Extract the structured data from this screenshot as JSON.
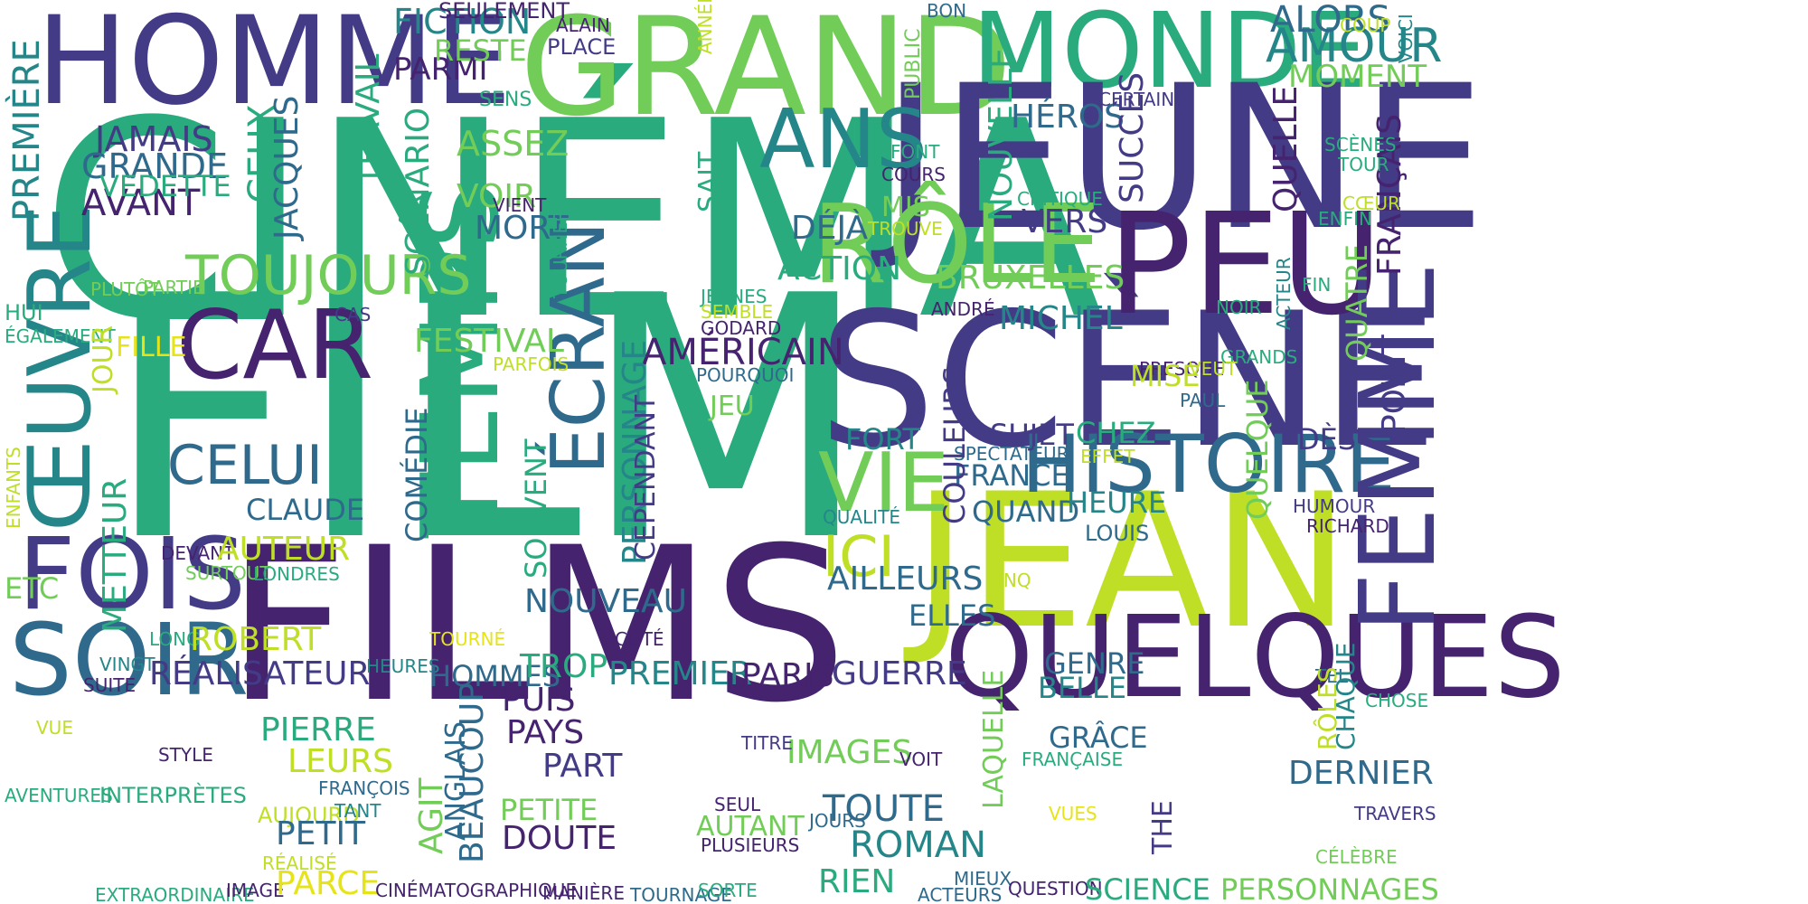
{
  "background": "#ffffff",
  "palette": {
    "dark_purple": "#45236f",
    "indigo": "#433b86",
    "blue": "#2f6a8c",
    "teal": "#25868a",
    "green": "#2aab7e",
    "light_green": "#72cc58",
    "yellow_green": "#bedf26",
    "yellow": "#e6e419"
  },
  "words": [
    {
      "text": "CINÉMA",
      "color": "#2aab7e"
    },
    {
      "text": "FILM",
      "color": "#2aab7e"
    },
    {
      "text": "FILMS",
      "color": "#45236f"
    },
    {
      "text": "GRAND",
      "color": "#72cc58"
    },
    {
      "text": "HOMME",
      "color": "#433b86"
    },
    {
      "text": "MONDE",
      "color": "#2aab7e"
    },
    {
      "text": "JEUNE",
      "color": "#433b86"
    },
    {
      "text": "SCÈNE",
      "color": "#433b86"
    },
    {
      "text": "JEAN",
      "color": "#bedf26"
    },
    {
      "text": "PEU",
      "color": "#45236f"
    },
    {
      "text": "RÔLE",
      "color": "#72cc58"
    },
    {
      "text": "QUELQUES",
      "color": "#45236f"
    },
    {
      "text": "HISTOIRE",
      "color": "#2f6a8c"
    },
    {
      "text": "FEMME",
      "color": "#433b86"
    },
    {
      "text": "TEMPS",
      "color": "#2aab7e"
    },
    {
      "text": "CAR",
      "color": "#45236f"
    },
    {
      "text": "ŒUVRE",
      "color": "#25868a"
    },
    {
      "text": "FOIS",
      "color": "#433b86"
    },
    {
      "text": "SOIR",
      "color": "#2f6a8c"
    },
    {
      "text": "ÉCRAN",
      "color": "#2f6a8c"
    },
    {
      "text": "ANS",
      "color": "#25868a"
    },
    {
      "text": "VIE",
      "color": "#72cc58"
    },
    {
      "text": "AMOUR",
      "color": "#25868a"
    },
    {
      "text": "TOUJOURS",
      "color": "#72cc58"
    },
    {
      "text": "CELUI",
      "color": "#2f6a8c"
    },
    {
      "text": "FICTION",
      "color": "#25868a"
    },
    {
      "text": "ICI",
      "color": "#bedf26"
    },
    {
      "text": "PREMIÈRE",
      "color": "#25868a"
    },
    {
      "text": "JAMAIS",
      "color": "#433b86"
    },
    {
      "text": "GRANDE",
      "color": "#2f6a8c"
    },
    {
      "text": "AVANT",
      "color": "#45236f"
    },
    {
      "text": "VEDETTE",
      "color": "#2aab7e"
    },
    {
      "text": "CEUX",
      "color": "#2aab7e"
    },
    {
      "text": "JACQUES",
      "color": "#2f6a8c"
    },
    {
      "text": "TRAVAIL",
      "color": "#2aab7e"
    },
    {
      "text": "SCÉNARIO",
      "color": "#2aab7e"
    },
    {
      "text": "ASSEZ",
      "color": "#72cc58"
    },
    {
      "text": "VOIR",
      "color": "#72cc58"
    },
    {
      "text": "MORT",
      "color": "#2f6a8c"
    },
    {
      "text": "PARMI",
      "color": "#45236f"
    },
    {
      "text": "RESTE",
      "color": "#72cc58"
    },
    {
      "text": "SEULEMENT",
      "color": "#45236f"
    },
    {
      "text": "ALAIN",
      "color": "#45236f"
    },
    {
      "text": "PLACE",
      "color": "#433b86"
    },
    {
      "text": "ANNÉES",
      "color": "#bedf26"
    },
    {
      "text": "BON",
      "color": "#2f6a8c"
    },
    {
      "text": "PUBLIC",
      "color": "#72cc58"
    },
    {
      "text": "SENS",
      "color": "#2aab7e"
    },
    {
      "text": "ALORS",
      "color": "#2f6a8c"
    },
    {
      "text": "COUP",
      "color": "#bedf26"
    },
    {
      "text": "VOICI",
      "color": "#25868a"
    },
    {
      "text": "MOMENT",
      "color": "#72cc58"
    },
    {
      "text": "CERTAINS",
      "color": "#433b86"
    },
    {
      "text": "HÉROS",
      "color": "#2f6a8c"
    },
    {
      "text": "NOUVELLE",
      "color": "#2aab7e"
    },
    {
      "text": "SUCCÈS",
      "color": "#433b86"
    },
    {
      "text": "QUELLE",
      "color": "#45236f"
    },
    {
      "text": "FRANÇAIS",
      "color": "#45236f"
    },
    {
      "text": "SCÈNES",
      "color": "#2aab7e"
    },
    {
      "text": "TOUR",
      "color": "#2aab7e"
    },
    {
      "text": "CŒUR",
      "color": "#bedf26"
    },
    {
      "text": "ENFIN",
      "color": "#2aab7e"
    },
    {
      "text": "FONT",
      "color": "#2aab7e"
    },
    {
      "text": "COURS",
      "color": "#45236f"
    },
    {
      "text": "CRITIQUE",
      "color": "#2aab7e"
    },
    {
      "text": "VERS",
      "color": "#433b86"
    },
    {
      "text": "MIS",
      "color": "#72cc58"
    },
    {
      "text": "TROUVE",
      "color": "#bedf26"
    },
    {
      "text": "DÉJÀ",
      "color": "#2f6a8c"
    },
    {
      "text": "ACTION",
      "color": "#2aab7e"
    },
    {
      "text": "VIENT",
      "color": "#45236f"
    },
    {
      "text": "SAIT",
      "color": "#2aab7e"
    },
    {
      "text": "BRUXELLES",
      "color": "#72cc58"
    },
    {
      "text": "MICHEL",
      "color": "#25868a"
    },
    {
      "text": "ANDRÉ",
      "color": "#45236f"
    },
    {
      "text": "NOIR",
      "color": "#2aab7e"
    },
    {
      "text": "ACTEUR",
      "color": "#25868a"
    },
    {
      "text": "FIN",
      "color": "#2aab7e"
    },
    {
      "text": "QUATRE",
      "color": "#72cc58"
    },
    {
      "text": "POINT",
      "color": "#433b86"
    },
    {
      "text": "GRANDS",
      "color": "#2aab7e"
    },
    {
      "text": "PRESQUE",
      "color": "#45236f"
    },
    {
      "text": "MISE",
      "color": "#bedf26"
    },
    {
      "text": "VEUT",
      "color": "#bedf26"
    },
    {
      "text": "PAUL",
      "color": "#2f6a8c"
    },
    {
      "text": "CHEZ",
      "color": "#2aab7e"
    },
    {
      "text": "EFFET",
      "color": "#bedf26"
    },
    {
      "text": "SUJET",
      "color": "#433b86"
    },
    {
      "text": "SPECTATEUR",
      "color": "#2f6a8c"
    },
    {
      "text": "FRANCE",
      "color": "#2f6a8c"
    },
    {
      "text": "QUAND",
      "color": "#2f6a8c"
    },
    {
      "text": "FORT",
      "color": "#25868a"
    },
    {
      "text": "COULEURS",
      "color": "#433b86"
    },
    {
      "text": "QUELQUE",
      "color": "#72cc58"
    },
    {
      "text": "DÈS",
      "color": "#433b86"
    },
    {
      "text": "HEURE",
      "color": "#25868a"
    },
    {
      "text": "LOUIS",
      "color": "#2f6a8c"
    },
    {
      "text": "HUMOUR",
      "color": "#433b86"
    },
    {
      "text": "RICHARD",
      "color": "#45236f"
    },
    {
      "text": "QUALITÉ",
      "color": "#25868a"
    },
    {
      "text": "JEUNES",
      "color": "#2aab7e"
    },
    {
      "text": "SEMBLE",
      "color": "#bedf26"
    },
    {
      "text": "GODARD",
      "color": "#45236f"
    },
    {
      "text": "POURQUOI",
      "color": "#2f6a8c"
    },
    {
      "text": "AMÉRICAIN",
      "color": "#45236f"
    },
    {
      "text": "JEU",
      "color": "#72cc58"
    },
    {
      "text": "PERSONNAGE",
      "color": "#25868a"
    },
    {
      "text": "CEPENDANT",
      "color": "#433b86"
    },
    {
      "text": "TOURNER",
      "color": "#2aab7e"
    },
    {
      "text": "CAS",
      "color": "#433b86"
    },
    {
      "text": "FESTIVAL",
      "color": "#72cc58"
    },
    {
      "text": "PARFOIS",
      "color": "#bedf26"
    },
    {
      "text": "HUI",
      "color": "#2aab7e"
    },
    {
      "text": "ÉGALEMENT",
      "color": "#2aab7e"
    },
    {
      "text": "FILLE",
      "color": "#e6e419"
    },
    {
      "text": "JOUR",
      "color": "#bedf26"
    },
    {
      "text": "PLUTÔT",
      "color": "#72cc58"
    },
    {
      "text": "PARTIE",
      "color": "#72cc58"
    },
    {
      "text": "METTEUR",
      "color": "#2aab7e"
    },
    {
      "text": "ENFANTS",
      "color": "#bedf26"
    },
    {
      "text": "CLAUDE",
      "color": "#2f6a8c"
    },
    {
      "text": "COMÉDIE",
      "color": "#2f6a8c"
    },
    {
      "text": "SOUVENT",
      "color": "#2aab7e"
    },
    {
      "text": "DEVANT",
      "color": "#45236f"
    },
    {
      "text": "AUTEUR",
      "color": "#bedf26"
    },
    {
      "text": "SURTOUT",
      "color": "#72cc58"
    },
    {
      "text": "LONDRES",
      "color": "#2aab7e"
    },
    {
      "text": "ETC",
      "color": "#72cc58"
    },
    {
      "text": "NOUVEAU",
      "color": "#2f6a8c"
    },
    {
      "text": "AILLEURS",
      "color": "#2f6a8c"
    },
    {
      "text": "CINQ",
      "color": "#bedf26"
    },
    {
      "text": "ELLES",
      "color": "#2f6a8c"
    },
    {
      "text": "LONG",
      "color": "#2aab7e"
    },
    {
      "text": "ROBERT",
      "color": "#bedf26"
    },
    {
      "text": "TOURNÉ",
      "color": "#e6e419"
    },
    {
      "text": "CÔTÉ",
      "color": "#45236f"
    },
    {
      "text": "VINGT",
      "color": "#25868a"
    },
    {
      "text": "RÉALISATEUR",
      "color": "#433b86"
    },
    {
      "text": "HEURES",
      "color": "#25868a"
    },
    {
      "text": "HOMMES",
      "color": "#2f6a8c"
    },
    {
      "text": "TROP",
      "color": "#2aab7e"
    },
    {
      "text": "PREMIER",
      "color": "#25868a"
    },
    {
      "text": "PARIS",
      "color": "#45236f"
    },
    {
      "text": "GUERRE",
      "color": "#433b86"
    },
    {
      "text": "GENRE",
      "color": "#2f6a8c"
    },
    {
      "text": "BELLE",
      "color": "#25868a"
    },
    {
      "text": "TEL",
      "color": "#2f6a8c"
    },
    {
      "text": "RÔLES",
      "color": "#bedf26"
    },
    {
      "text": "CHAQUE",
      "color": "#25868a"
    },
    {
      "text": "CHOSE",
      "color": "#2aab7e"
    },
    {
      "text": "SUITE",
      "color": "#45236f"
    },
    {
      "text": "VUE",
      "color": "#bedf26"
    },
    {
      "text": "PIERRE",
      "color": "#2aab7e"
    },
    {
      "text": "LEURS",
      "color": "#bedf26"
    },
    {
      "text": "STYLE",
      "color": "#45236f"
    },
    {
      "text": "PUIS",
      "color": "#45236f"
    },
    {
      "text": "PAYS",
      "color": "#45236f"
    },
    {
      "text": "PART",
      "color": "#433b86"
    },
    {
      "text": "IMAGES",
      "color": "#72cc58"
    },
    {
      "text": "TITRE",
      "color": "#433b86"
    },
    {
      "text": "VOIT",
      "color": "#45236f"
    },
    {
      "text": "GRÂCE",
      "color": "#2f6a8c"
    },
    {
      "text": "FRANÇAISE",
      "color": "#2aab7e"
    },
    {
      "text": "LAQUELLE",
      "color": "#72cc58"
    },
    {
      "text": "DERNIER",
      "color": "#2f6a8c"
    },
    {
      "text": "THE",
      "color": "#433b86"
    },
    {
      "text": "TRAVERS",
      "color": "#433b86"
    },
    {
      "text": "AVENTURES",
      "color": "#2aab7e"
    },
    {
      "text": "INTERPRÈTES",
      "color": "#2aab7e"
    },
    {
      "text": "FRANÇOIS",
      "color": "#2f6a8c"
    },
    {
      "text": "AUJOURD",
      "color": "#bedf26"
    },
    {
      "text": "TANT",
      "color": "#25868a"
    },
    {
      "text": "PETIT",
      "color": "#2f6a8c"
    },
    {
      "text": "AGIT",
      "color": "#72cc58"
    },
    {
      "text": "ANGLAIS",
      "color": "#2f6a8c"
    },
    {
      "text": "BEAUCOUP",
      "color": "#2f6a8c"
    },
    {
      "text": "PETITE",
      "color": "#72cc58"
    },
    {
      "text": "DOUTE",
      "color": "#45236f"
    },
    {
      "text": "AUTANT",
      "color": "#72cc58"
    },
    {
      "text": "SEUL",
      "color": "#45236f"
    },
    {
      "text": "PLUSIEURS",
      "color": "#45236f"
    },
    {
      "text": "JOURS",
      "color": "#2f6a8c"
    },
    {
      "text": "TOUTE",
      "color": "#2f6a8c"
    },
    {
      "text": "ROMAN",
      "color": "#25868a"
    },
    {
      "text": "RIEN",
      "color": "#2aab7e"
    },
    {
      "text": "VUES",
      "color": "#e6e419"
    },
    {
      "text": "MIEUX",
      "color": "#2f6a8c"
    },
    {
      "text": "ACTEURS",
      "color": "#2f6a8c"
    },
    {
      "text": "QUESTION",
      "color": "#45236f"
    },
    {
      "text": "SCIENCE",
      "color": "#2aab7e"
    },
    {
      "text": "PERSONNAGES",
      "color": "#72cc58"
    },
    {
      "text": "CÉLÈBRE",
      "color": "#72cc58"
    },
    {
      "text": "EXTRAORDINAIRE",
      "color": "#2aab7e"
    },
    {
      "text": "RÉALISÉ",
      "color": "#bedf26"
    },
    {
      "text": "IMAGE",
      "color": "#45236f"
    },
    {
      "text": "PARCE",
      "color": "#e6e419"
    },
    {
      "text": "CINÉMATOGRAPHIQUE",
      "color": "#45236f"
    },
    {
      "text": "MANIÈRE",
      "color": "#45236f"
    },
    {
      "text": "TOURNAGE",
      "color": "#2f6a8c"
    },
    {
      "text": "SORTE",
      "color": "#2aab7e"
    }
  ]
}
